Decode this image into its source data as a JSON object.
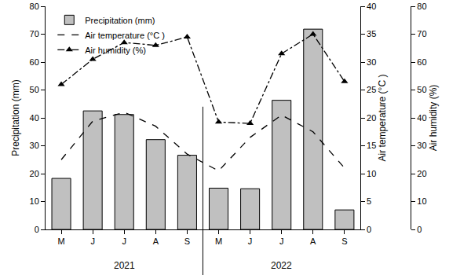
{
  "chart_data": {
    "type": "mixed",
    "categories": [
      "M",
      "J",
      "J",
      "A",
      "S",
      "M",
      "J",
      "J",
      "A",
      "S"
    ],
    "series": [
      {
        "name": "Precipitation (mm)",
        "type": "bar",
        "color": "#c0c0c0",
        "values": [
          18.3,
          42.5,
          41.2,
          32.2,
          26.6,
          14.8,
          14.6,
          46.3,
          71.8,
          7.0
        ]
      },
      {
        "name": "Air temperature (°C )",
        "type": "line",
        "color": "#000000",
        "line_style": "dash",
        "axis": "y2",
        "values": [
          12.5,
          19.4,
          21.0,
          18.5,
          13.5,
          10.5,
          16.5,
          20.5,
          17.5,
          11.0
        ]
      },
      {
        "name": "Air humidity (%)",
        "type": "line",
        "color": "#000000",
        "line_style": "dashdot",
        "marker": "triangle-up",
        "axis": "y3",
        "values": [
          52,
          61,
          67,
          66,
          69,
          38.5,
          38,
          63,
          70,
          53
        ]
      }
    ],
    "y_label": "Precipitation (mm)",
    "y2_label": "Air temperature (°C )",
    "y3_label": "Air humidity (%)",
    "ylim": [
      0,
      80
    ],
    "yticks": [
      0,
      10,
      20,
      30,
      40,
      50,
      60,
      70,
      80
    ],
    "y2lim": [
      0,
      40
    ],
    "y2ticks": [
      0,
      5,
      10,
      15,
      20,
      25,
      30,
      35,
      40
    ],
    "y3lim": [
      0,
      80
    ],
    "y3ticks": [
      0,
      10,
      20,
      30,
      40,
      50,
      60,
      70,
      80
    ],
    "annotations": [
      {
        "text": "2021",
        "x": 2
      },
      {
        "text": "2022",
        "x": 7
      }
    ],
    "legend": "upper left",
    "grid": false
  }
}
